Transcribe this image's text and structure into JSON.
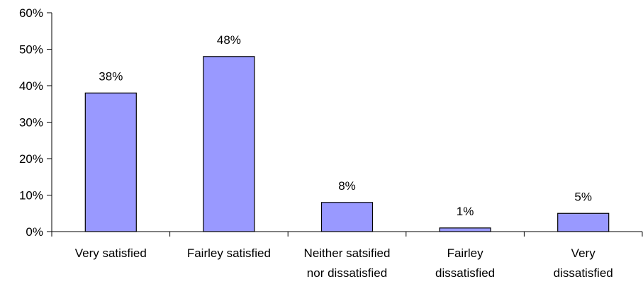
{
  "chart_data": {
    "type": "bar",
    "title": "",
    "xlabel": "",
    "ylabel": "",
    "ylim": [
      0,
      60
    ],
    "y_ticks": [
      "0%",
      "10%",
      "20%",
      "30%",
      "40%",
      "50%",
      "60%"
    ],
    "y_tick_values": [
      0,
      10,
      20,
      30,
      40,
      50,
      60
    ],
    "grid": false,
    "legend": "none",
    "bar_color": "#9999ff",
    "categories": [
      [
        "Very satisfied"
      ],
      [
        "Fairley satisfied"
      ],
      [
        "Neither satsified",
        "nor dissatisfied"
      ],
      [
        "Fairley",
        "dissatisfied"
      ],
      [
        "Very",
        "dissatisfied"
      ]
    ],
    "values": [
      38,
      48,
      8,
      1,
      5
    ],
    "data_labels": [
      "38%",
      "48%",
      "8%",
      "1%",
      "5%"
    ]
  }
}
